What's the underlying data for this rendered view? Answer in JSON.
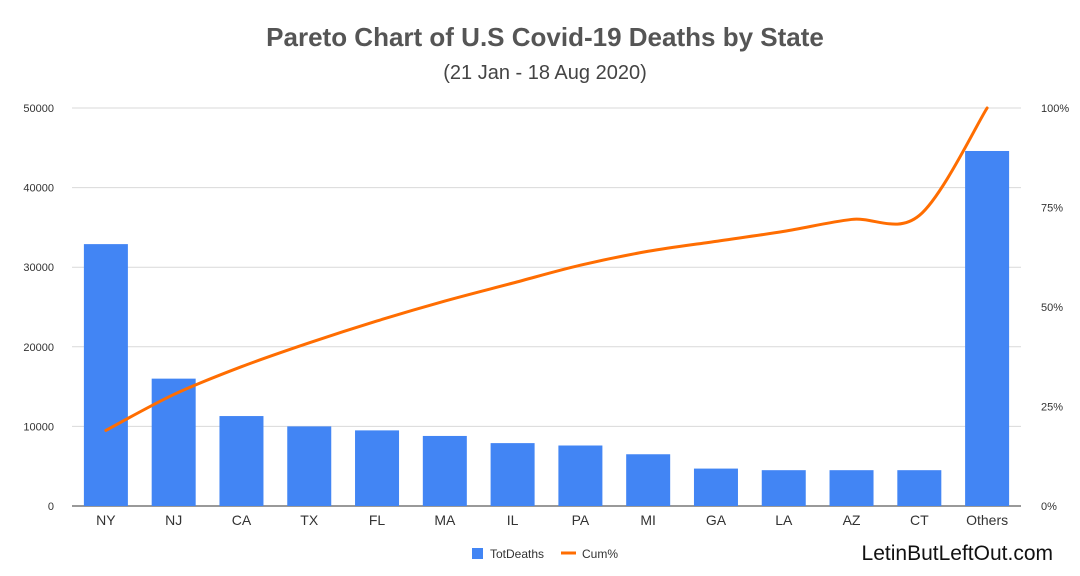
{
  "chart_data": {
    "type": "bar",
    "title": "Pareto Chart of U.S Covid-19 Deaths by State",
    "subtitle": "(21 Jan - 18 Aug 2020)",
    "categories": [
      "NY",
      "NJ",
      "CA",
      "TX",
      "FL",
      "MA",
      "IL",
      "PA",
      "MI",
      "GA",
      "LA",
      "AZ",
      "CT",
      "Others"
    ],
    "series": [
      {
        "name": "TotDeaths",
        "type": "bar",
        "axis": "left",
        "color": "#4285f4",
        "values": [
          32900,
          16000,
          11300,
          10000,
          9500,
          8800,
          7900,
          7600,
          6500,
          4700,
          4500,
          4500,
          4500,
          44600
        ]
      },
      {
        "name": "Cum%",
        "type": "line",
        "axis": "right",
        "color": "#ff6d01",
        "values": [
          19,
          28,
          35,
          41,
          46.5,
          51.5,
          56,
          60.5,
          64,
          66.5,
          69,
          72,
          73,
          100
        ]
      }
    ],
    "y_left": {
      "min": 0,
      "max": 50000,
      "ticks": [
        "0",
        "10000",
        "20000",
        "30000",
        "40000",
        "50000"
      ]
    },
    "y_right": {
      "min": 0,
      "max": 100,
      "ticks": [
        "0%",
        "25%",
        "50%",
        "75%",
        "100%"
      ]
    },
    "grid": true,
    "legend": "bottom"
  },
  "watermark": "LetinButLeftOut.com"
}
